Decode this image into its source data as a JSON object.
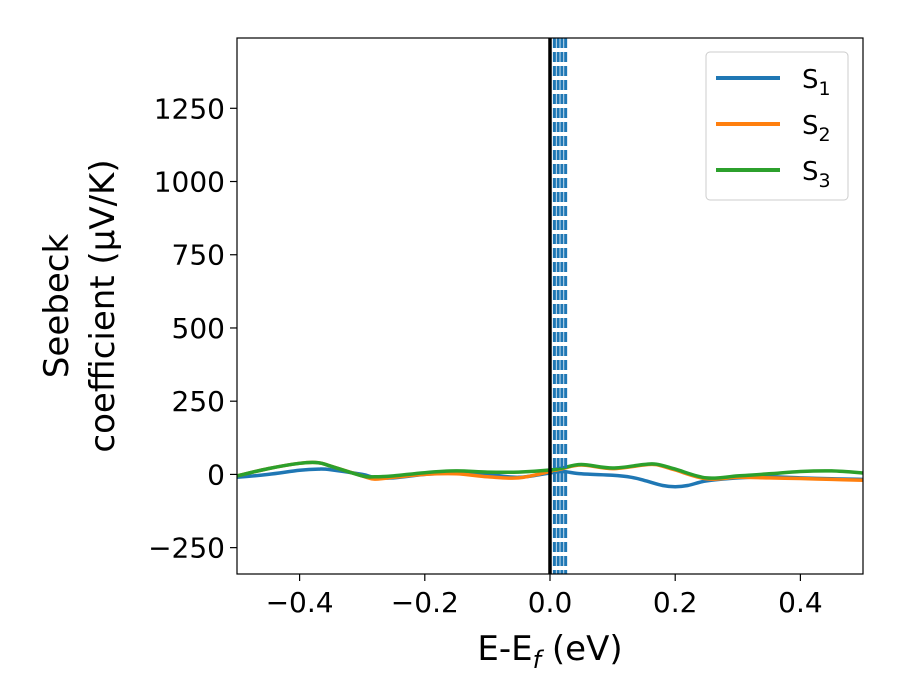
{
  "chart_data": {
    "type": "line",
    "xlabel": "E-E",
    "xlabel_sub": "f",
    "xlabel_unit": " (eV)",
    "ylabel_line1": "Seebeck",
    "ylabel_line2": "coefficient  (μV/K)",
    "xlim": [
      -0.5,
      0.5
    ],
    "ylim": [
      -340,
      1490
    ],
    "xticks": [
      -0.4,
      -0.2,
      0.0,
      0.2,
      0.4
    ],
    "xtick_labels": [
      "−0.4",
      "−0.2",
      "0.0",
      "0.2",
      "0.4"
    ],
    "yticks": [
      -250,
      0,
      250,
      500,
      750,
      1000,
      1250
    ],
    "ytick_labels": [
      "−250",
      "0",
      "250",
      "500",
      "750",
      "1000",
      "1250"
    ],
    "grid": false,
    "legend_position": "top-right",
    "vertical_lines": {
      "solid": {
        "x": 0.0,
        "color": "#000000"
      },
      "dashed": {
        "x": [
          0.007,
          0.013,
          0.019,
          0.025
        ],
        "color": "#1f77b4"
      }
    },
    "series": [
      {
        "name": "S",
        "subscript": "1",
        "color": "#1f77b4",
        "x": [
          -0.5,
          -0.45,
          -0.4,
          -0.37,
          -0.35,
          -0.3,
          -0.28,
          -0.25,
          -0.2,
          -0.15,
          -0.1,
          -0.05,
          0.0,
          0.02,
          0.05,
          0.1,
          0.13,
          0.15,
          0.18,
          0.2,
          0.22,
          0.25,
          0.3,
          0.35,
          0.4,
          0.45,
          0.5
        ],
        "y": [
          -10,
          0,
          14,
          18,
          16,
          0,
          -10,
          -12,
          0,
          6,
          0,
          -10,
          5,
          10,
          2,
          -3,
          -10,
          -20,
          -38,
          -42,
          -38,
          -22,
          -12,
          -8,
          -12,
          -15,
          -17
        ]
      },
      {
        "name": "S",
        "subscript": "2",
        "color": "#ff7f0e",
        "x": [
          -0.5,
          -0.45,
          -0.4,
          -0.37,
          -0.35,
          -0.3,
          -0.28,
          -0.25,
          -0.2,
          -0.15,
          -0.1,
          -0.05,
          0.0,
          0.02,
          0.05,
          0.1,
          0.15,
          0.17,
          0.2,
          0.25,
          0.3,
          0.35,
          0.4,
          0.45,
          0.5
        ],
        "y": [
          -5,
          20,
          38,
          40,
          28,
          -5,
          -16,
          -10,
          0,
          2,
          -8,
          -12,
          10,
          20,
          32,
          20,
          32,
          33,
          15,
          -15,
          -10,
          -12,
          -14,
          -17,
          -20
        ]
      },
      {
        "name": "S",
        "subscript": "3",
        "color": "#2ca02c",
        "x": [
          -0.5,
          -0.45,
          -0.4,
          -0.37,
          -0.35,
          -0.3,
          -0.28,
          -0.25,
          -0.2,
          -0.15,
          -0.1,
          -0.05,
          0.0,
          0.02,
          0.05,
          0.1,
          0.15,
          0.17,
          0.2,
          0.25,
          0.3,
          0.35,
          0.4,
          0.45,
          0.5
        ],
        "y": [
          -5,
          20,
          38,
          40,
          28,
          -5,
          -8,
          -5,
          6,
          12,
          8,
          8,
          15,
          22,
          34,
          22,
          34,
          35,
          18,
          -12,
          -5,
          2,
          10,
          12,
          5
        ]
      }
    ]
  }
}
